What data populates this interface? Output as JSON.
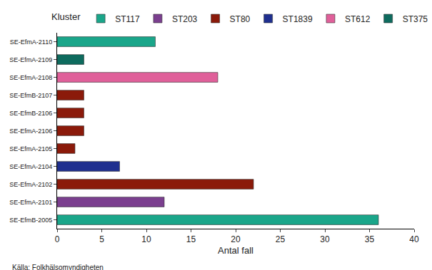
{
  "chart_data": {
    "type": "bar",
    "orientation": "horizontal",
    "legend_title": "Kluster",
    "legend": "top",
    "x_label": "Antal fall",
    "source": "Källa: Folkhälsomyndigheten",
    "categories": [
      "SE-EfmA-2110",
      "SE-EfmA-2109",
      "SE-EfmA-2108",
      "SE-EfmB-2107",
      "SE-EfmB-2106",
      "SE-EfmA-2106",
      "SE-EfmA-2105",
      "SE-EfmA-2104",
      "SE-EfmA-2102",
      "SE-EfmA-2101",
      "SE-EfmB-2005"
    ],
    "series": [
      {
        "name": "ST117",
        "color": "#1aa68a",
        "values": [
          11,
          null,
          null,
          null,
          null,
          null,
          null,
          null,
          null,
          null,
          36
        ]
      },
      {
        "name": "ST203",
        "color": "#7b3f8f",
        "values": [
          null,
          null,
          null,
          null,
          null,
          null,
          null,
          null,
          null,
          12,
          null
        ]
      },
      {
        "name": "ST80",
        "color": "#8b1a0a",
        "values": [
          null,
          null,
          null,
          3,
          3,
          3,
          2,
          null,
          22,
          null,
          null
        ]
      },
      {
        "name": "ST1839",
        "color": "#1f2f8f",
        "values": [
          null,
          null,
          null,
          null,
          null,
          null,
          null,
          7,
          null,
          null,
          null
        ]
      },
      {
        "name": "ST612",
        "color": "#e0609a",
        "values": [
          null,
          null,
          18,
          null,
          null,
          null,
          null,
          null,
          null,
          null,
          null
        ]
      },
      {
        "name": "ST375",
        "color": "#0e6b5e",
        "values": [
          null,
          3,
          null,
          null,
          null,
          null,
          null,
          null,
          null,
          null,
          null
        ]
      }
    ],
    "xlim": [
      0,
      40
    ],
    "xticks": [
      0,
      5,
      10,
      15,
      20,
      25,
      30,
      35,
      40
    ],
    "grid": false
  }
}
